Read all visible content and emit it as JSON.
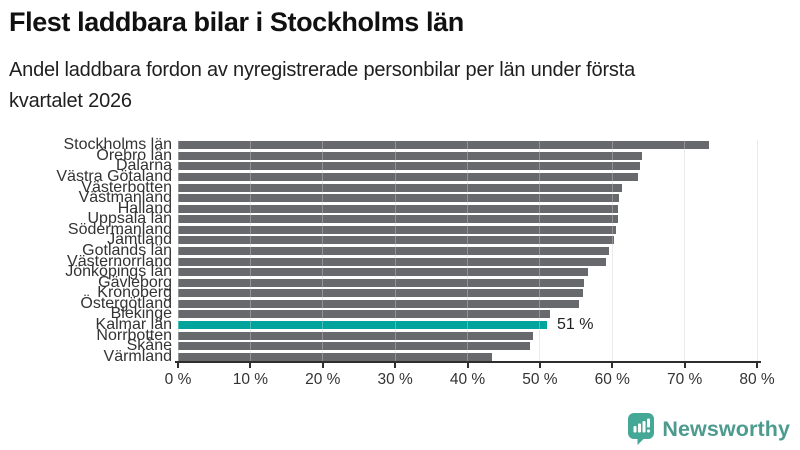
{
  "header": {
    "title": "Flest laddbara bilar i Stockholms län",
    "subtitle_line1": "Andel laddbara fordon av nyregistrerade personbilar per län under första",
    "subtitle_line2": "kvartalet 2026"
  },
  "chart_data": {
    "type": "bar",
    "orientation": "horizontal",
    "title": "Flest laddbara bilar i Stockholms län",
    "subtitle": "Andel laddbara fordon av nyregistrerade personbilar per län under första kvartalet 2026",
    "xlabel": "",
    "ylabel": "",
    "unit": "%",
    "xlim": [
      0,
      80
    ],
    "x_ticks": [
      0,
      10,
      20,
      30,
      40,
      50,
      60,
      70,
      80
    ],
    "x_tick_labels": [
      "0 %",
      "10 %",
      "20 %",
      "30 %",
      "40 %",
      "50 %",
      "60 %",
      "70 %",
      "80 %"
    ],
    "grid": "vertical",
    "categories": [
      "Stockholms län",
      "Örebro län",
      "Dalarna",
      "Västra Götaland",
      "Västerbotten",
      "Västmanland",
      "Halland",
      "Uppsala län",
      "Södermanland",
      "Jämtland",
      "Gotlands län",
      "Västernorrland",
      "Jönköpings län",
      "Gävleborg",
      "Kronoberg",
      "Östergötland",
      "Blekinge",
      "Kalmar län",
      "Norrbotten",
      "Skåne",
      "Värmland"
    ],
    "values": [
      73.3,
      64.1,
      63.9,
      63.6,
      61.3,
      61.0,
      60.8,
      60.8,
      60.5,
      60.2,
      59.5,
      59.1,
      56.7,
      56.1,
      56.0,
      55.4,
      51.4,
      51.0,
      49.1,
      48.6,
      43.4
    ],
    "highlight": {
      "category": "Kalmar län",
      "index": 17,
      "value": 51,
      "label": "51 %"
    },
    "bar_color": "#68696d",
    "highlight_color": "#00a49c"
  },
  "footer": {
    "brand": "Newsworthy"
  },
  "colors": {
    "background": "#ffffff",
    "bar_gray": "#68696d",
    "bar_highlight_teal": "#00a49c",
    "gridline": "#e2e2e2",
    "axis": "#2e2e2e",
    "text_dark": "#111111",
    "logo_teal": "#45a795",
    "brand_text_teal": "#4d9a8f"
  }
}
